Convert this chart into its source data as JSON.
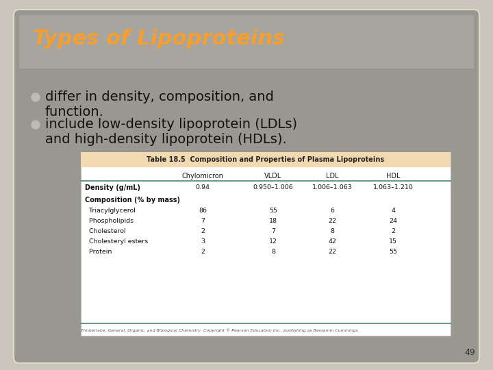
{
  "title": "Types of Lipoproteins",
  "title_color": "#F4A030",
  "bullet1_line1": "differ in density, composition, and",
  "bullet1_line2": "function.",
  "bullet2_line1": "include low-density lipoprotein (LDLs)",
  "bullet2_line2": "and high-density lipoprotein (HDLs).",
  "bullet_color": "#BBBBBB",
  "text_color": "#111111",
  "bg_outer": "#CAC6BC",
  "slide_bg": "#9E9E9E",
  "slide_inner_bg": "#A8A4A0",
  "table_title": "Table 18.5  Composition and Properties of Plasma Lipoproteins",
  "table_title_bg": "#F2D9B0",
  "table_title_border": "#D4A060",
  "table_header_line_color": "#4A8A70",
  "table_bottom_line_color": "#4A8A70",
  "col_headers": [
    "",
    "Chylomicron",
    "VLDL",
    "LDL",
    "HDL"
  ],
  "rows": [
    [
      "Density (g/mL)",
      "0.94",
      "0.950–1.006",
      "1.006–1.063",
      "1.063–1.210"
    ],
    [
      "Composition (% by mass)",
      "",
      "",
      "",
      ""
    ],
    [
      "  Triacylglycerol",
      "86",
      "55",
      "6",
      "4"
    ],
    [
      "  Phospholipids",
      "7",
      "18",
      "22",
      "24"
    ],
    [
      "  Cholesterol",
      "2",
      "7",
      "8",
      "2"
    ],
    [
      "  Cholesteryl esters",
      "3",
      "12",
      "42",
      "15"
    ],
    [
      "  Protein",
      "2",
      "8",
      "22",
      "55"
    ]
  ],
  "footer_text": "Timberlake, General, Organic, and Biological Chemistry  Copyright © Pearson Education Inc., publishing as Benjamin Cummings",
  "page_number": "49"
}
